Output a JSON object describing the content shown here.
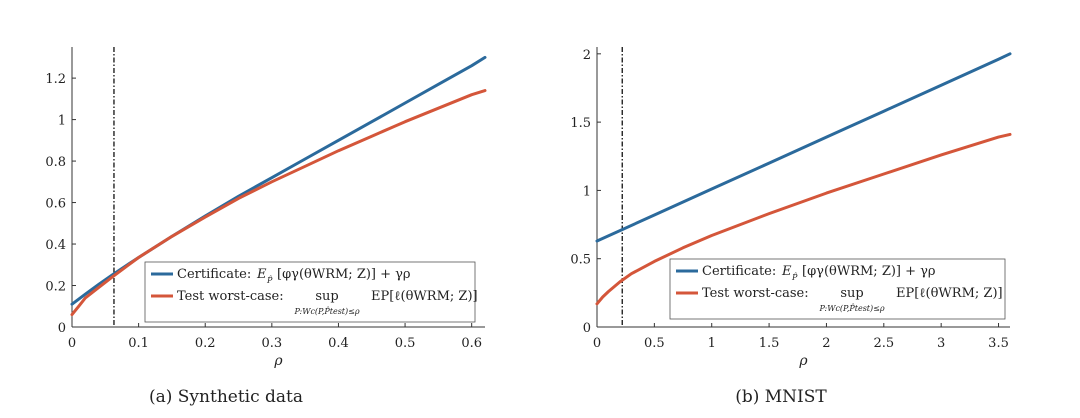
{
  "chart_data": [
    {
      "type": "line",
      "caption": "(a) Synthetic data",
      "xlabel": "ρ",
      "ylabel": "",
      "xlim": [
        0,
        0.62
      ],
      "ylim": [
        0,
        1.35
      ],
      "xticks": [
        "0",
        "0.1",
        "0.2",
        "0.3",
        "0.4",
        "0.5",
        "0.6"
      ],
      "yticks": [
        "0",
        "0.2",
        "0.4",
        "0.6",
        "0.8",
        "1",
        "1.2"
      ],
      "vline": 0.063,
      "legend_position": "lower-right",
      "legend": {
        "certificate": {
          "label": "Certificate:",
          "formula": "E",
          "sub": "P̂",
          "rest": "[φγ(θWRM; Z)] + γρ"
        },
        "worst": {
          "label": "Test worst-case:",
          "op": "sup",
          "op_sub": "P:Wc(P,P̂test)≤ρ",
          "rest": "EP[ℓ(θWRM; Z)]"
        }
      },
      "series": [
        {
          "name": "Certificate",
          "color": "#2b6a9c",
          "x": [
            0,
            0.02,
            0.04,
            0.06,
            0.08,
            0.1,
            0.15,
            0.2,
            0.25,
            0.3,
            0.35,
            0.4,
            0.45,
            0.5,
            0.55,
            0.6,
            0.62
          ],
          "y": [
            0.11,
            0.158,
            0.205,
            0.25,
            0.293,
            0.335,
            0.437,
            0.535,
            0.63,
            0.72,
            0.81,
            0.9,
            0.99,
            1.08,
            1.17,
            1.26,
            1.3
          ]
        },
        {
          "name": "Test worst-case",
          "color": "#d4563a",
          "x": [
            0,
            0.01,
            0.02,
            0.04,
            0.06,
            0.08,
            0.1,
            0.15,
            0.2,
            0.25,
            0.3,
            0.35,
            0.4,
            0.45,
            0.5,
            0.55,
            0.6,
            0.62
          ],
          "y": [
            0.06,
            0.1,
            0.14,
            0.19,
            0.24,
            0.288,
            0.335,
            0.437,
            0.53,
            0.62,
            0.7,
            0.775,
            0.85,
            0.92,
            0.99,
            1.055,
            1.12,
            1.14
          ]
        }
      ]
    },
    {
      "type": "line",
      "caption": "(b) MNIST",
      "xlabel": "ρ",
      "ylabel": "",
      "xlim": [
        0,
        3.6
      ],
      "ylim": [
        0,
        2.05
      ],
      "xticks": [
        "0",
        "0.5",
        "1",
        "1.5",
        "2",
        "2.5",
        "3",
        "3.5"
      ],
      "yticks": [
        "0",
        "0.5",
        "1",
        "1.5",
        "2"
      ],
      "vline": 0.22,
      "legend_position": "lower-right",
      "legend": {
        "certificate": {
          "label": "Certificate:",
          "formula": "E",
          "sub": "P̂",
          "rest": "[φγ(θWRM; Z)] + γρ"
        },
        "worst": {
          "label": "Test worst-case:",
          "op": "sup",
          "op_sub": "P:Wc(P,P̂test)≤ρ",
          "rest": "EP[ℓ(θWRM; Z)]"
        }
      },
      "series": [
        {
          "name": "Certificate",
          "color": "#2b6a9c",
          "x": [
            0,
            0.5,
            1,
            1.5,
            2,
            2.5,
            3,
            3.5,
            3.6
          ],
          "y": [
            0.63,
            0.82,
            1.01,
            1.2,
            1.39,
            1.58,
            1.77,
            1.96,
            2.0
          ]
        },
        {
          "name": "Test worst-case",
          "color": "#d4563a",
          "x": [
            0,
            0.05,
            0.1,
            0.2,
            0.3,
            0.5,
            0.75,
            1,
            1.5,
            2,
            2.5,
            3,
            3.5,
            3.6
          ],
          "y": [
            0.17,
            0.22,
            0.26,
            0.33,
            0.39,
            0.48,
            0.58,
            0.67,
            0.83,
            0.98,
            1.12,
            1.26,
            1.39,
            1.41
          ]
        }
      ]
    }
  ]
}
